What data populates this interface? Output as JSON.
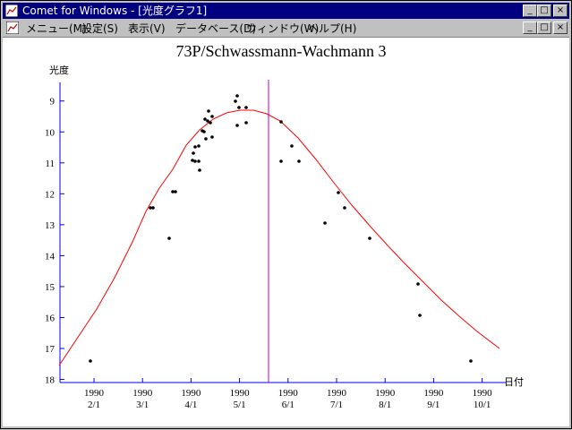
{
  "window": {
    "title": "Comet for Windows - [光度グラフ1]",
    "buttons": [
      "_",
      "□",
      "×"
    ]
  },
  "menu": [
    {
      "label": "メニュー(M)"
    },
    {
      "label": "設定(S)"
    },
    {
      "label": "表示(V)"
    },
    {
      "label": "データベース(D)"
    },
    {
      "label": "ウィンドウ(W)"
    },
    {
      "label": "ヘルプ(H)"
    }
  ],
  "chart_data": {
    "type": "scatter",
    "title": "73P/Schwassmann-Wachmann 3",
    "ylabel": "光度",
    "xlabel": "日付",
    "ylim": [
      18.1,
      8.4
    ],
    "y_ticks": [
      9,
      10,
      11,
      12,
      13,
      14,
      15,
      16,
      17,
      18
    ],
    "x_ticks": [
      {
        "year": "1990",
        "date": "2/1"
      },
      {
        "year": "1990",
        "date": "3/1"
      },
      {
        "year": "1990",
        "date": "4/1"
      },
      {
        "year": "1990",
        "date": "5/1"
      },
      {
        "year": "1990",
        "date": "6/1"
      },
      {
        "year": "1990",
        "date": "7/1"
      },
      {
        "year": "1990",
        "date": "8/1"
      },
      {
        "year": "1990",
        "date": "9/1"
      },
      {
        "year": "1990",
        "date": "10/1"
      }
    ],
    "colors": {
      "curve": "#ff0000",
      "marker_line": "#c000c0",
      "points": "#000000",
      "axis": "#0000ff"
    }
  }
}
